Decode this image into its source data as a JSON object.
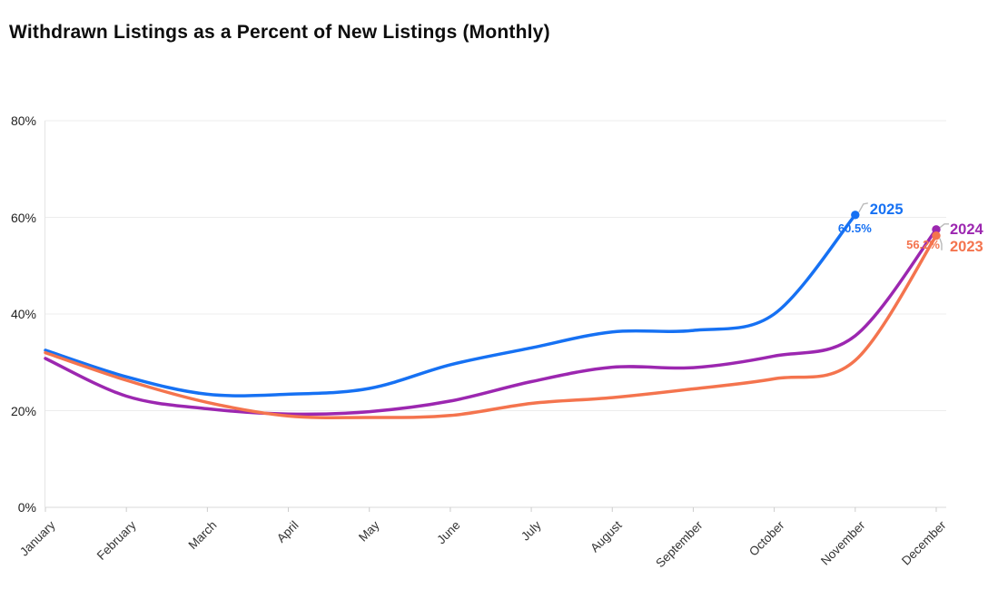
{
  "chart_data": {
    "type": "line",
    "title": "Withdrawn Listings as a Percent of New Listings (Monthly)",
    "xlabel": "",
    "ylabel": "",
    "x": [
      "January",
      "February",
      "March",
      "April",
      "May",
      "June",
      "July",
      "August",
      "September",
      "October",
      "November",
      "December"
    ],
    "ylim": [
      0,
      80
    ],
    "yticks": [
      0,
      20,
      40,
      60,
      80
    ],
    "ytick_labels": [
      "0%",
      "20%",
      "40%",
      "60%",
      "80%"
    ],
    "grid": "horizontal",
    "legend_position": "end-of-line",
    "colors": {
      "grid": "#ececec",
      "axis": "#d8d8d8",
      "tick": "#cccccc",
      "connector": "#b9b9b9",
      "title_text": "#0d0d0d",
      "axis_text": "#333333"
    },
    "series": [
      {
        "name": "2025",
        "color": "#1671F3",
        "end_label": "2025",
        "value_label": "60.5%",
        "values": [
          32.5,
          27.0,
          23.4,
          23.4,
          24.6,
          29.5,
          33.0,
          36.3,
          36.6,
          40.0,
          60.5
        ]
      },
      {
        "name": "2024",
        "color": "#9C27B0",
        "end_label": "2024",
        "value_label": "",
        "values": [
          30.8,
          23.0,
          20.4,
          19.3,
          19.8,
          22.0,
          26.0,
          29.0,
          28.9,
          31.3,
          35.5,
          57.5
        ]
      },
      {
        "name": "2023",
        "color": "#F4744E",
        "end_label": "2023",
        "value_label": "56.2%",
        "values": [
          32.0,
          26.3,
          21.7,
          18.9,
          18.6,
          19.0,
          21.5,
          22.7,
          24.5,
          26.6,
          30.4,
          56.2
        ]
      }
    ]
  }
}
